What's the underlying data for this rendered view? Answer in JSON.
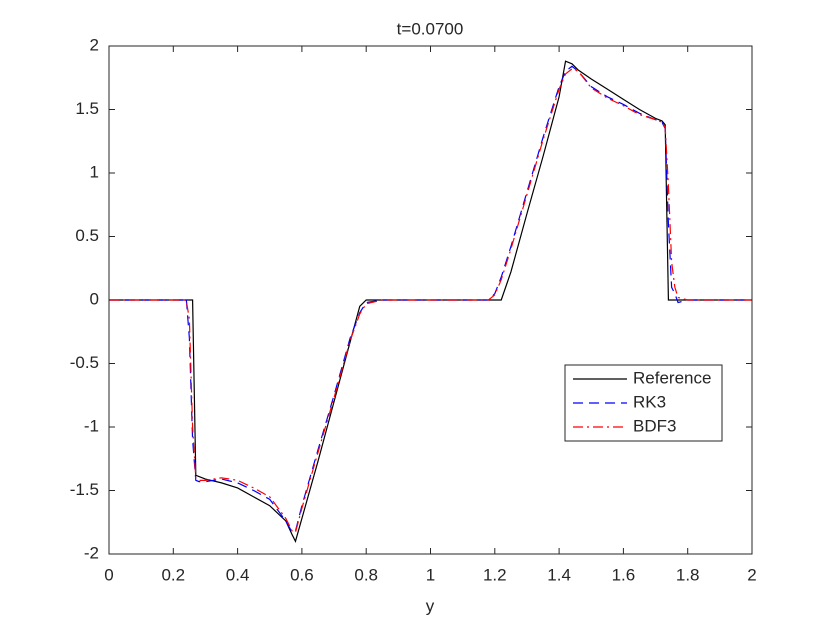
{
  "chart_data": {
    "type": "line",
    "title": "t=0.0700",
    "x_label": "y",
    "x": [
      0,
      0.1,
      0.2,
      0.23,
      0.24,
      0.25,
      0.26,
      0.27,
      0.28,
      0.3,
      0.35,
      0.4,
      0.45,
      0.5,
      0.55,
      0.57,
      0.58,
      0.6,
      0.65,
      0.7,
      0.75,
      0.78,
      0.8,
      0.85,
      0.9,
      1.0,
      1.1,
      1.18,
      1.2,
      1.22,
      1.25,
      1.3,
      1.35,
      1.4,
      1.42,
      1.44,
      1.46,
      1.5,
      1.55,
      1.6,
      1.65,
      1.7,
      1.72,
      1.73,
      1.74,
      1.75,
      1.76,
      1.77,
      1.8,
      1.9,
      2.0
    ],
    "series": [
      {
        "name": "Reference",
        "color": "#000000",
        "linestyle": "solid",
        "values": [
          0,
          0,
          0,
          0,
          0,
          0,
          0,
          -1.38,
          -1.39,
          -1.41,
          -1.44,
          -1.48,
          -1.55,
          -1.62,
          -1.74,
          -1.85,
          -1.9,
          -1.72,
          -1.27,
          -0.8,
          -0.33,
          -0.05,
          0,
          0,
          0,
          0,
          0,
          0,
          0,
          0,
          0.22,
          0.68,
          1.13,
          1.6,
          1.88,
          1.86,
          1.81,
          1.74,
          1.66,
          1.58,
          1.5,
          1.43,
          1.41,
          1.38,
          0,
          0,
          0,
          0,
          0,
          0,
          0
        ]
      },
      {
        "name": "RK3",
        "color": "#0000ff",
        "linestyle": "dashed",
        "values": [
          0,
          0,
          0,
          0,
          0.02,
          -0.3,
          -1.1,
          -1.42,
          -1.43,
          -1.43,
          -1.41,
          -1.44,
          -1.5,
          -1.57,
          -1.74,
          -1.83,
          -1.82,
          -1.62,
          -1.18,
          -0.75,
          -0.3,
          -0.1,
          -0.02,
          0,
          0,
          0,
          0,
          0,
          0.05,
          0.18,
          0.42,
          0.85,
          1.28,
          1.68,
          1.8,
          1.84,
          1.8,
          1.68,
          1.6,
          1.54,
          1.47,
          1.42,
          1.4,
          1.35,
          0.6,
          0.1,
          0.05,
          -0.02,
          0,
          0,
          0
        ]
      },
      {
        "name": "BDF3",
        "color": "#ff0000",
        "linestyle": "dashdot",
        "values": [
          0,
          0,
          0,
          0,
          0,
          -0.15,
          -1.0,
          -1.4,
          -1.42,
          -1.42,
          -1.4,
          -1.42,
          -1.48,
          -1.55,
          -1.72,
          -1.82,
          -1.83,
          -1.64,
          -1.2,
          -0.77,
          -0.32,
          -0.11,
          -0.03,
          0,
          0,
          0,
          0,
          0,
          0.04,
          0.16,
          0.4,
          0.83,
          1.26,
          1.66,
          1.78,
          1.82,
          1.8,
          1.67,
          1.59,
          1.53,
          1.46,
          1.42,
          1.4,
          1.36,
          0.9,
          0.3,
          0.1,
          0.02,
          0,
          0,
          0
        ]
      }
    ],
    "xlim": [
      0,
      2
    ],
    "xticks": [
      0,
      0.2,
      0.4,
      0.6,
      0.8,
      1,
      1.2,
      1.4,
      1.6,
      1.8,
      2
    ],
    "ylim": [
      -2,
      2
    ],
    "yticks": [
      -2,
      -1.5,
      -1,
      -0.5,
      0,
      0.5,
      1,
      1.5,
      2
    ],
    "grid": false,
    "legend_position": "east"
  }
}
